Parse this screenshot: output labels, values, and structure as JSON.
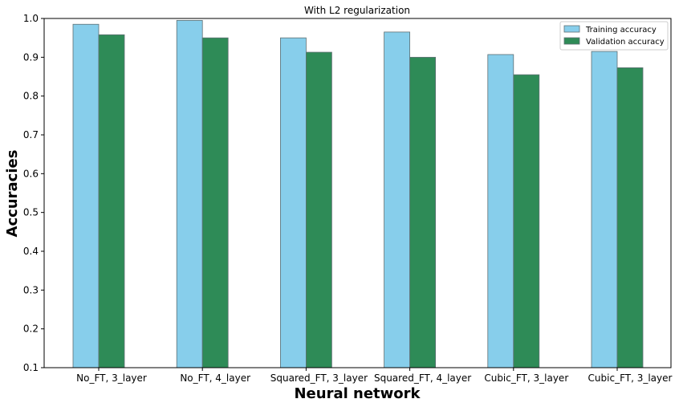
{
  "chart_data": {
    "type": "bar",
    "title": "With L2 regularization",
    "xlabel": "Neural network",
    "ylabel": "Accuracies",
    "categories": [
      "No_FT, 3_layer",
      "No_FT, 4_layer",
      "Squared_FT, 3_layer",
      "Squared_FT, 4_layer",
      "Cubic_FT, 3_layer",
      "Cubic_FT, 3_layer"
    ],
    "series": [
      {
        "name": "Training accuracy",
        "color": "#87ceeb",
        "values": [
          0.985,
          0.995,
          0.95,
          0.965,
          0.907,
          0.915
        ]
      },
      {
        "name": "Validation accuracy",
        "color": "#2e8b57",
        "values": [
          0.958,
          0.95,
          0.913,
          0.9,
          0.855,
          0.873
        ]
      }
    ],
    "ylim": [
      0.1,
      1.0
    ],
    "yticks": [
      "0.1",
      "0.2",
      "0.3",
      "0.4",
      "0.5",
      "0.6",
      "0.7",
      "0.8",
      "0.9",
      "1.0"
    ],
    "grid": false,
    "legend_position": "top-right",
    "bar_edge_color": "#5f6f73"
  }
}
